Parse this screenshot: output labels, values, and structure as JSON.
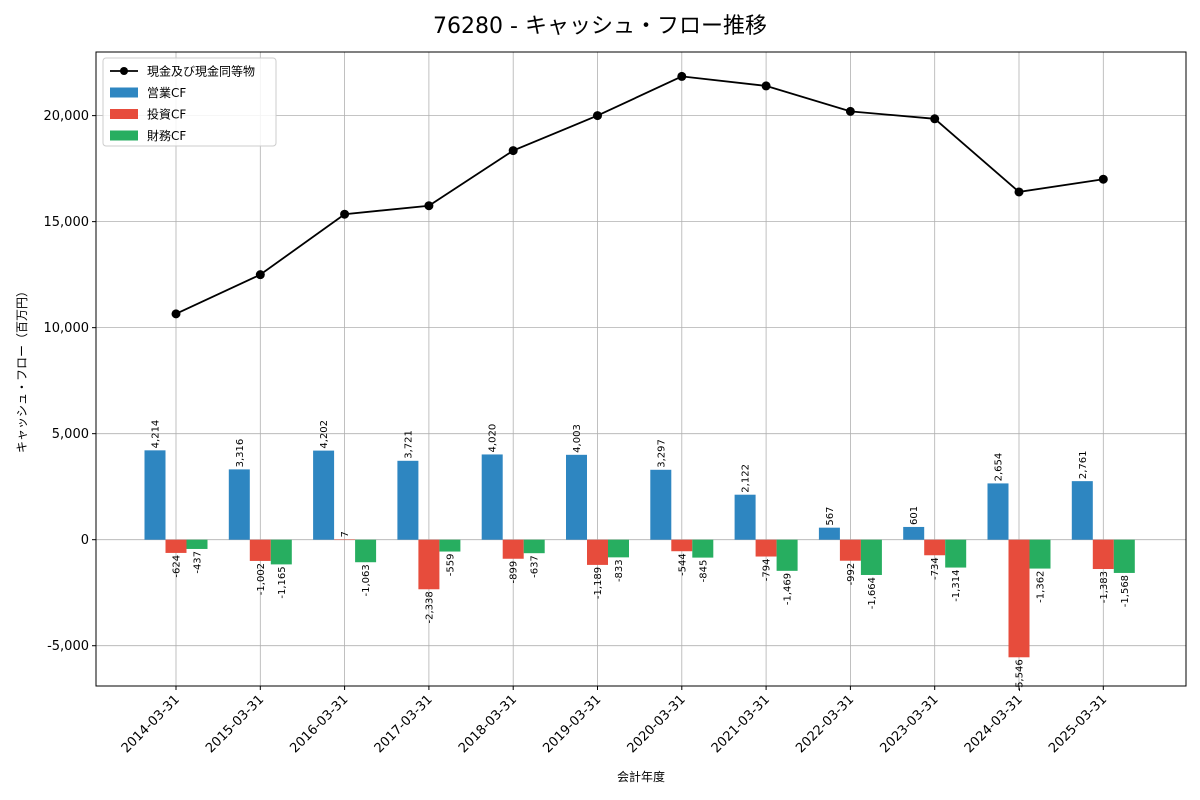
{
  "chart_data": {
    "type": "bar",
    "title": "76280 - キャッシュ・フロー推移",
    "xlabel": "会計年度",
    "ylabel": "キャッシュ・フロー（百万円）",
    "ylim": [
      -6900,
      23000
    ],
    "yticks": [
      -5000,
      0,
      5000,
      10000,
      15000,
      20000
    ],
    "ytick_labels": [
      "-5,000",
      "0",
      "5,000",
      "10,000",
      "15,000",
      "20,000"
    ],
    "grid": true,
    "legend_position": "top-left",
    "categories": [
      "2014-03-31",
      "2015-03-31",
      "2016-03-31",
      "2017-03-31",
      "2018-03-31",
      "2019-03-31",
      "2020-03-31",
      "2021-03-31",
      "2022-03-31",
      "2023-03-31",
      "2024-03-31",
      "2025-03-31"
    ],
    "series": [
      {
        "name": "営業CF",
        "kind": "bar",
        "color": "#2e86c1",
        "values": [
          4214,
          3316,
          4202,
          3721,
          4020,
          4003,
          3297,
          2122,
          567,
          601,
          2654,
          2761
        ],
        "labels": [
          "4,214",
          "3,316",
          "4,202",
          "3,721",
          "4,020",
          "4,003",
          "3,297",
          "2,122",
          "567",
          "601",
          "2,654",
          "2,761"
        ]
      },
      {
        "name": "投資CF",
        "kind": "bar",
        "color": "#e74c3c",
        "values": [
          -624,
          -1002,
          7,
          -2338,
          -899,
          -1189,
          -544,
          -794,
          -992,
          -734,
          -5546,
          -1383
        ],
        "labels": [
          "-624",
          "-1,002",
          "7",
          "-2,338",
          "-899",
          "-1,189",
          "-544",
          "-794",
          "-992",
          "-734",
          "-5,546",
          "-1,383"
        ]
      },
      {
        "name": "財務CF",
        "kind": "bar",
        "color": "#27ae60",
        "values": [
          -437,
          -1165,
          -1063,
          -559,
          -637,
          -833,
          -845,
          -1469,
          -1664,
          -1314,
          -1362,
          -1568
        ],
        "labels": [
          "-437",
          "-1,165",
          "-1,063",
          "-559",
          "-637",
          "-833",
          "-845",
          "-1,469",
          "-1,664",
          "-1,314",
          "-1,362",
          "-1,568"
        ]
      },
      {
        "name": "現金及び現金同等物",
        "kind": "line",
        "color": "#000000",
        "values": [
          10650,
          12500,
          15350,
          15750,
          18350,
          20000,
          21850,
          21400,
          20200,
          19850,
          16400,
          17000
        ]
      }
    ]
  }
}
